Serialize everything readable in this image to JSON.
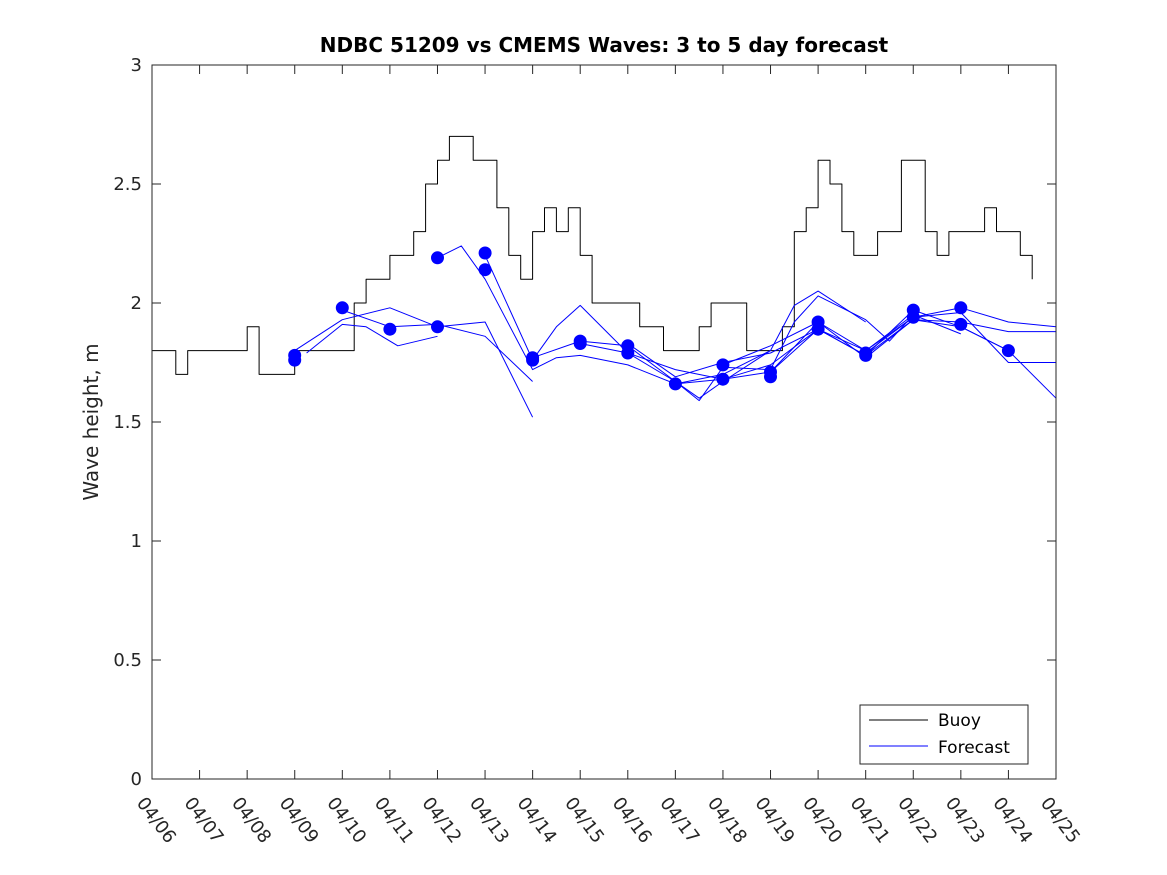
{
  "chart_data": {
    "type": "line",
    "title": "NDBC 51209 vs CMEMS Waves: 3 to 5 day forecast",
    "xlabel": "",
    "ylabel": "Wave height, m",
    "xlim": [
      "04/06",
      "04/25"
    ],
    "ylim": [
      0,
      3
    ],
    "x_ticks": [
      "04/06",
      "04/07",
      "04/08",
      "04/09",
      "04/10",
      "04/11",
      "04/12",
      "04/13",
      "04/14",
      "04/15",
      "04/16",
      "04/17",
      "04/18",
      "04/19",
      "04/20",
      "04/21",
      "04/22",
      "04/23",
      "04/24",
      "04/25"
    ],
    "y_ticks": [
      "0",
      "0.5",
      "1",
      "1.5",
      "2",
      "2.5",
      "3"
    ],
    "grid": false,
    "legend_position": "bottom-right",
    "colors": {
      "buoy": "#000000",
      "forecast": "#0000ff",
      "markers": "#0000ff"
    },
    "series": [
      {
        "name": "Buoy",
        "x": [
          "04/06 00:00",
          "04/06 06:00",
          "04/06 12:00",
          "04/06 18:00",
          "04/07 00:00",
          "04/07 06:00",
          "04/07 12:00",
          "04/07 18:00",
          "04/08 00:00",
          "04/08 06:00",
          "04/08 12:00",
          "04/08 18:00",
          "04/09 00:00",
          "04/09 06:00",
          "04/09 12:00",
          "04/09 18:00",
          "04/10 00:00",
          "04/10 06:00",
          "04/10 12:00",
          "04/10 18:00",
          "04/11 00:00",
          "04/11 06:00",
          "04/11 12:00",
          "04/11 18:00",
          "04/12 00:00",
          "04/12 06:00",
          "04/12 12:00",
          "04/12 18:00",
          "04/13 00:00",
          "04/13 06:00",
          "04/13 12:00",
          "04/13 18:00",
          "04/14 00:00",
          "04/14 06:00",
          "04/14 12:00",
          "04/14 18:00",
          "04/15 00:00",
          "04/15 06:00",
          "04/15 12:00",
          "04/15 18:00",
          "04/16 00:00",
          "04/16 06:00",
          "04/16 12:00",
          "04/16 18:00",
          "04/17 00:00",
          "04/17 06:00",
          "04/17 12:00",
          "04/17 18:00",
          "04/18 00:00",
          "04/18 06:00",
          "04/18 12:00",
          "04/18 18:00",
          "04/19 00:00",
          "04/19 06:00",
          "04/19 12:00",
          "04/19 18:00",
          "04/20 00:00",
          "04/20 06:00",
          "04/20 12:00",
          "04/20 18:00",
          "04/21 00:00",
          "04/21 06:00",
          "04/21 12:00",
          "04/21 18:00",
          "04/22 00:00",
          "04/22 06:00",
          "04/22 12:00",
          "04/22 18:00",
          "04/23 00:00",
          "04/23 06:00",
          "04/23 12:00",
          "04/23 18:00",
          "04/24 00:00",
          "04/24 06:00",
          "04/24 12:00"
        ],
        "values": [
          1.8,
          1.8,
          1.7,
          1.8,
          1.8,
          1.8,
          1.8,
          1.8,
          1.9,
          1.7,
          1.7,
          1.7,
          1.8,
          1.8,
          1.8,
          1.8,
          1.8,
          2.0,
          2.1,
          2.1,
          2.2,
          2.2,
          2.3,
          2.5,
          2.6,
          2.7,
          2.7,
          2.6,
          2.6,
          2.4,
          2.2,
          2.1,
          2.3,
          2.4,
          2.3,
          2.4,
          2.2,
          2.0,
          2.0,
          2.0,
          2.0,
          1.9,
          1.9,
          1.8,
          1.8,
          1.8,
          1.9,
          2.0,
          2.0,
          2.0,
          1.8,
          1.8,
          1.8,
          1.9,
          2.3,
          2.4,
          2.6,
          2.5,
          2.3,
          2.2,
          2.2,
          2.3,
          2.3,
          2.6,
          2.6,
          2.3,
          2.2,
          2.3,
          2.3,
          2.3,
          2.4,
          2.3,
          2.3,
          2.2,
          2.1
        ]
      },
      {
        "name": "Forecast",
        "x": [
          "04/09",
          "04/10",
          "04/11",
          "04/12",
          "04/13",
          "04/14"
        ],
        "values": [
          1.8,
          1.93,
          1.98,
          1.9,
          1.92,
          1.52
        ]
      },
      {
        "x": [
          "04/09 06:00",
          "04/10",
          "04/10 12:00",
          "04/11 04:00",
          "04/12"
        ],
        "values": [
          1.79,
          1.91,
          1.9,
          1.82,
          1.86
        ]
      },
      {
        "x": [
          "04/10",
          "04/11",
          "04/12",
          "04/13",
          "04/14"
        ],
        "values": [
          1.97,
          1.9,
          1.91,
          1.86,
          1.67
        ]
      },
      {
        "x": [
          "04/12",
          "04/12 12:00",
          "04/13",
          "04/14",
          "04/14 12:00",
          "04/15",
          "04/16",
          "04/17",
          "04/18",
          "04/19"
        ],
        "values": [
          2.19,
          2.24,
          2.1,
          1.72,
          1.77,
          1.78,
          1.74,
          1.66,
          1.7,
          1.8
        ]
      },
      {
        "x": [
          "04/13",
          "04/14",
          "04/14 12:00",
          "04/15",
          "04/16",
          "04/17",
          "04/18",
          "04/19",
          "04/20"
        ],
        "values": [
          2.2,
          1.76,
          1.9,
          1.99,
          1.79,
          1.72,
          1.68,
          1.74,
          1.89
        ]
      },
      {
        "x": [
          "04/14",
          "04/15",
          "04/16",
          "04/17",
          "04/17 12:00",
          "04/18",
          "04/19",
          "04/19 12:00",
          "04/20",
          "04/21"
        ],
        "values": [
          1.77,
          1.84,
          1.82,
          1.67,
          1.6,
          1.67,
          1.8,
          1.99,
          2.05,
          1.92
        ]
      },
      {
        "x": [
          "04/15",
          "04/16",
          "04/17",
          "04/17 12:00",
          "04/18",
          "04/19",
          "04/19 12:00",
          "04/20",
          "04/21",
          "04/21 12:00",
          "04/22"
        ],
        "values": [
          1.83,
          1.79,
          1.67,
          1.59,
          1.73,
          1.72,
          1.92,
          2.03,
          1.93,
          1.84,
          1.95
        ]
      },
      {
        "x": [
          "04/16",
          "04/17",
          "04/18",
          "04/19",
          "04/20",
          "04/21",
          "04/22",
          "04/23"
        ],
        "values": [
          1.83,
          1.69,
          1.75,
          1.79,
          1.89,
          1.8,
          1.95,
          1.87
        ]
      },
      {
        "x": [
          "04/17",
          "04/18",
          "04/19",
          "04/20",
          "04/21",
          "04/22",
          "04/23",
          "04/24"
        ],
        "values": [
          1.66,
          1.68,
          1.71,
          1.89,
          1.78,
          1.97,
          1.9,
          1.8
        ]
      },
      {
        "x": [
          "04/18",
          "04/19",
          "04/20",
          "04/21",
          "04/22",
          "04/23",
          "04/24",
          "04/25"
        ],
        "values": [
          1.74,
          1.82,
          1.92,
          1.77,
          1.93,
          1.9,
          1.8,
          1.6
        ]
      },
      {
        "x": [
          "04/19",
          "04/20",
          "04/21",
          "04/22",
          "04/23",
          "04/24",
          "04/25"
        ],
        "values": [
          1.71,
          1.92,
          1.8,
          1.94,
          1.96,
          1.75,
          1.75
        ]
      },
      {
        "x": [
          "04/20",
          "04/21",
          "04/22",
          "04/23",
          "04/24",
          "04/25"
        ],
        "values": [
          1.89,
          1.78,
          1.93,
          1.92,
          1.88,
          1.88
        ]
      },
      {
        "x": [
          "04/21",
          "04/22",
          "04/23",
          "04/24",
          "04/25"
        ],
        "values": [
          1.79,
          1.94,
          1.98,
          1.92,
          1.9
        ]
      }
    ],
    "markers": {
      "x": [
        "04/09",
        "04/09",
        "04/10",
        "04/11",
        "04/12",
        "04/12",
        "04/13",
        "04/13",
        "04/14",
        "04/14",
        "04/15",
        "04/15",
        "04/16",
        "04/16",
        "04/17",
        "04/18",
        "04/18",
        "04/19",
        "04/19",
        "04/20",
        "04/20",
        "04/21",
        "04/21",
        "04/22",
        "04/22",
        "04/23",
        "04/23",
        "04/24"
      ],
      "values": [
        1.78,
        1.76,
        1.98,
        1.89,
        2.19,
        1.9,
        2.21,
        2.14,
        1.77,
        1.76,
        1.84,
        1.83,
        1.82,
        1.79,
        1.66,
        1.74,
        1.68,
        1.71,
        1.69,
        1.92,
        1.89,
        1.79,
        1.78,
        1.97,
        1.94,
        1.98,
        1.91,
        1.8
      ]
    }
  },
  "legend": {
    "items": [
      {
        "label": "Buoy",
        "color": "#000000"
      },
      {
        "label": "Forecast",
        "color": "#0000ff"
      }
    ]
  }
}
